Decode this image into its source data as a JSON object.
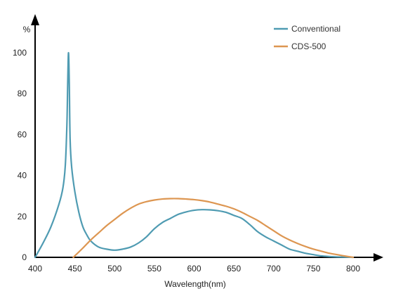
{
  "chart_data": {
    "type": "line",
    "title": "",
    "xlabel": "Wavelength(nm)",
    "ylabel": "%",
    "xlim": [
      400,
      800
    ],
    "ylim": [
      0,
      100
    ],
    "x_ticks": [
      400,
      450,
      500,
      550,
      600,
      650,
      700,
      750,
      800
    ],
    "y_ticks": [
      0,
      20,
      40,
      60,
      80,
      100
    ],
    "grid": false,
    "legend": "top-right",
    "series": [
      {
        "name": "Conventional",
        "color": "#4f9bb2",
        "points": [
          [
            400,
            0
          ],
          [
            410,
            7
          ],
          [
            420,
            15
          ],
          [
            430,
            26
          ],
          [
            435,
            34
          ],
          [
            438,
            45
          ],
          [
            440,
            65
          ],
          [
            441,
            85
          ],
          [
            442,
            100
          ],
          [
            443,
            85
          ],
          [
            444,
            58
          ],
          [
            446,
            44
          ],
          [
            450,
            32
          ],
          [
            455,
            22
          ],
          [
            460,
            15
          ],
          [
            465,
            11
          ],
          [
            470,
            8
          ],
          [
            480,
            5
          ],
          [
            490,
            4
          ],
          [
            500,
            3.5
          ],
          [
            510,
            4
          ],
          [
            520,
            5
          ],
          [
            530,
            7
          ],
          [
            540,
            10
          ],
          [
            550,
            14
          ],
          [
            560,
            17
          ],
          [
            570,
            19
          ],
          [
            580,
            21
          ],
          [
            590,
            22.2
          ],
          [
            600,
            23
          ],
          [
            610,
            23.3
          ],
          [
            620,
            23.2
          ],
          [
            630,
            22.8
          ],
          [
            640,
            22
          ],
          [
            650,
            20.5
          ],
          [
            660,
            19
          ],
          [
            670,
            16
          ],
          [
            680,
            12.5
          ],
          [
            690,
            10
          ],
          [
            700,
            8
          ],
          [
            710,
            6
          ],
          [
            720,
            4
          ],
          [
            730,
            3
          ],
          [
            740,
            2
          ],
          [
            750,
            1.3
          ],
          [
            760,
            0.7
          ],
          [
            770,
            0.4
          ],
          [
            780,
            0.2
          ],
          [
            800,
            0
          ]
        ]
      },
      {
        "name": "CDS-500",
        "color": "#dd9651",
        "points": [
          [
            448,
            0
          ],
          [
            460,
            4.5
          ],
          [
            470,
            8.5
          ],
          [
            480,
            12
          ],
          [
            490,
            15.5
          ],
          [
            500,
            18.5
          ],
          [
            510,
            21.5
          ],
          [
            520,
            24
          ],
          [
            530,
            26
          ],
          [
            540,
            27.2
          ],
          [
            550,
            28
          ],
          [
            560,
            28.5
          ],
          [
            570,
            28.7
          ],
          [
            580,
            28.7
          ],
          [
            590,
            28.5
          ],
          [
            600,
            28.2
          ],
          [
            610,
            27.7
          ],
          [
            620,
            27
          ],
          [
            630,
            26
          ],
          [
            640,
            25
          ],
          [
            650,
            23.7
          ],
          [
            660,
            22
          ],
          [
            670,
            20
          ],
          [
            680,
            18
          ],
          [
            690,
            15.5
          ],
          [
            700,
            13
          ],
          [
            710,
            10.5
          ],
          [
            720,
            8.5
          ],
          [
            730,
            6.8
          ],
          [
            740,
            5.3
          ],
          [
            750,
            4
          ],
          [
            760,
            3
          ],
          [
            770,
            2
          ],
          [
            780,
            1.3
          ],
          [
            790,
            0.6
          ],
          [
            800,
            0
          ]
        ]
      }
    ]
  }
}
